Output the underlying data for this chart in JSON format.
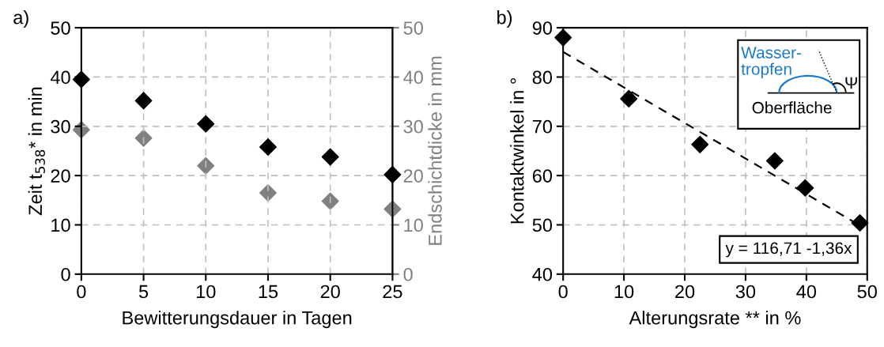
{
  "chart_data": [
    {
      "type": "scatter",
      "title": "a)",
      "xlabel": "Bewitterungsdauer in Tagen",
      "ylabel": "Zeit t$_{538}$* in min",
      "y2label": "Endschichtdicke in mm",
      "x": [
        0,
        5,
        10,
        15,
        20,
        25
      ],
      "series": [
        {
          "color": "#000000",
          "values": [
            39.5,
            35.2,
            30.5,
            25.8,
            23.8,
            20.2
          ]
        },
        {
          "color": "#808080",
          "axis": "y2",
          "values": [
            29.3,
            27.6,
            22.0,
            16.5,
            14.8,
            13.2
          ]
        }
      ],
      "xlim": [
        0,
        25
      ],
      "xticks": [
        0,
        5,
        10,
        15,
        20,
        25
      ],
      "ylim": [
        0,
        50
      ],
      "yticks": [
        0,
        10,
        20,
        30,
        40,
        50
      ],
      "y2lim": [
        0,
        50
      ],
      "y2ticks": [
        0,
        10,
        20,
        30,
        40,
        50
      ],
      "grid": true,
      "marker": "diamond"
    },
    {
      "type": "scatter",
      "title": "b)",
      "xlabel": "Alterungsrate ** in %",
      "ylabel": "Kontaktwinkel in °",
      "series": [
        {
          "color": "#000000",
          "x": [
            0,
            10.8,
            22.5,
            34.8,
            39.8,
            48.8
          ],
          "values": [
            88,
            75.6,
            66.3,
            63,
            57.5,
            50.4
          ]
        },
        {
          "type": "line",
          "color": "#000000",
          "line_style": "dashed",
          "marker": "none",
          "x": [
            0,
            49.2
          ],
          "values": [
            85.1,
            49.6
          ]
        }
      ],
      "annotations": [
        "y = 116,71 -1,36x",
        "Wasser-\ntropfen",
        "Oberfläche",
        "Ψ"
      ],
      "xlim": [
        0,
        50
      ],
      "xticks": [
        0,
        10,
        20,
        30,
        40,
        50
      ],
      "ylim": [
        40,
        90
      ],
      "yticks": [
        40,
        50,
        60,
        70,
        80,
        90
      ],
      "grid": true,
      "marker": "diamond"
    }
  ]
}
